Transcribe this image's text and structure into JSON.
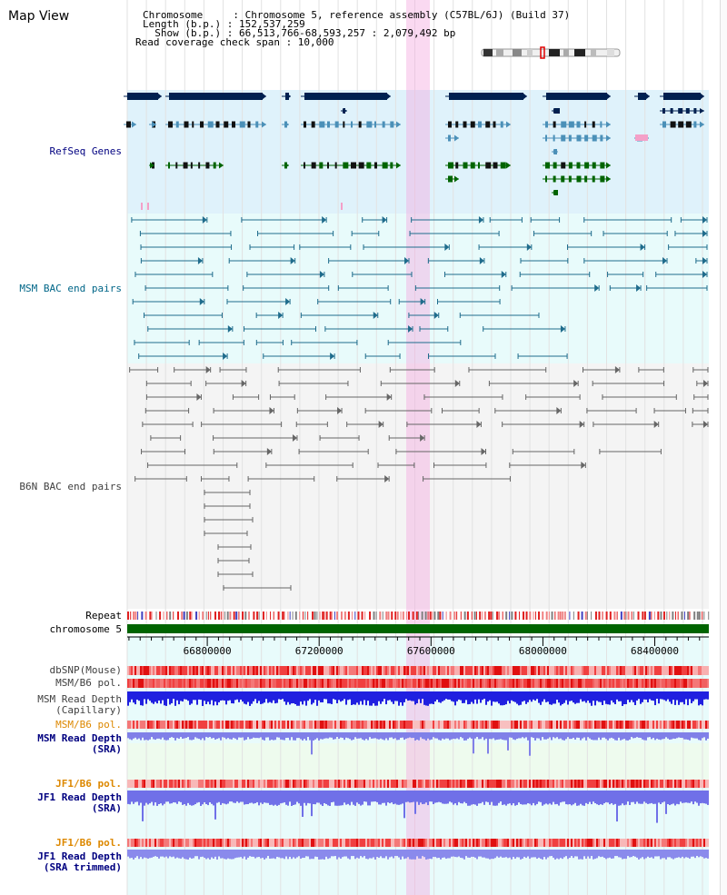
{
  "header": {
    "title": "Map View",
    "chromosome_line": "Chromosome     : Chromosome 5, reference assembly (C57BL/6J) (Build 37)",
    "length_line": "Length (b.p.) : 152,537,259",
    "show_line": "  Show (b.p.) : 66,513,766-68,593,257 : 2,079,492 bp",
    "coverage_line": "Read coverage check span : 10,000"
  },
  "tracks": {
    "refseq": "RefSeq Genes",
    "msm_bac": "MSM BAC end pairs",
    "b6n_bac": "B6N BAC end pairs",
    "repeat": "Repeat",
    "chromosome": "chromosome 5",
    "dbsnp": "dbSNP(Mouse)",
    "msm_b6_pol_1": "MSM/B6 pol.",
    "msm_depth_cap_1": "MSM Read Depth",
    "msm_depth_cap_2": "(Capillary)",
    "msm_b6_pol_2": "MSM/B6 pol.",
    "msm_depth_sra_1": "MSM Read Depth",
    "msm_depth_sra_2": "(SRA)",
    "jf1_b6_pol_1": "JF1/B6 pol.",
    "jf1_depth_sra_1": "JF1 Read Depth",
    "jf1_depth_sra_2": "(SRA)",
    "jf1_b6_pol_2": "JF1/B6 pol.",
    "jf1_depth_trim_1": "JF1 Read Depth",
    "jf1_depth_trim_2": "(SRA trimmed)"
  },
  "axis": {
    "start": 66513766,
    "end": 68593257,
    "ticks": [
      66800000,
      67200000,
      67600000,
      68000000,
      68400000
    ],
    "labels": [
      "66800000",
      "67200000",
      "67600000",
      "68000000",
      "68400000"
    ],
    "highlight_region": [
      67513766,
      67593766
    ]
  },
  "colors": {
    "refseq_bg": "#dff2fb",
    "refseq_gene": "#002050",
    "refseq_transcript": "#4b90b8",
    "refseq_green": "#006400",
    "msm_bg": "#e8fbfb",
    "msm_line": "#1f6c8c",
    "b6n_bg": "#f4f4f4",
    "b6n_line": "#666666",
    "highlight": "#f5c8ec",
    "chromosome_bar": "#006400",
    "label_navy": "#000080",
    "label_teal": "#006688",
    "label_orange": "#dd8800",
    "label_gray": "#404040"
  }
}
